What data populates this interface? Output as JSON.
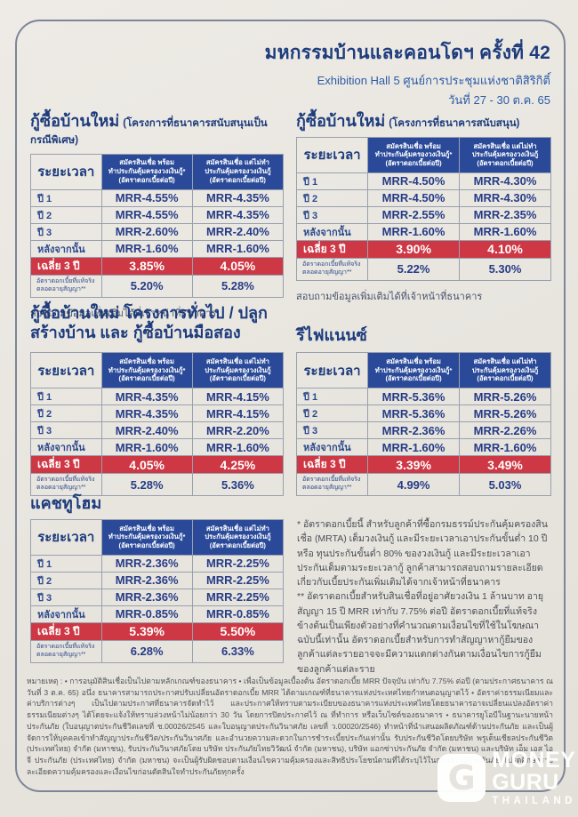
{
  "header": {
    "title": "มหกรรมบ้านและคอนโดฯ ครั้งที่ 42",
    "subtitle": "Exhibition Hall 5 ศูนย์การประชุมแห่งชาติสิริกิติ์",
    "date": "วันที่ 27 - 30 ต.ค. 65"
  },
  "colors": {
    "navy": "#1d3c7c",
    "header_blue": "#2a4a99",
    "red": "#ce3744",
    "paper": "#e8e5e0",
    "white": "#ffffff"
  },
  "table_common": {
    "period_header": "ระยะเวลา",
    "col_with": "สมัครสินเชื่อ พร้อม\nทำประกันคุ้มครองวงเงินกู้*\n(อัตราดอกเบี้ยต่อปี)",
    "col_without": "สมัครสินเชื่อ แต่ไม่ทำ\nประกันคุ้มครองวงเงินกู้\n(อัตราดอกเบี้ยต่อปี)",
    "row_labels": [
      "ปี 1",
      "ปี 2",
      "ปี 3",
      "หลังจากนั้น"
    ],
    "avg_label": "เฉลี่ย 3 ปี",
    "effective_label": "อัตราดอกเบี้ยที่แท้จริง\nตลอดอายุสัญญา**"
  },
  "tables": [
    {
      "title": "กู้ซื้อบ้านใหม่",
      "subtitle": "(โครงการที่ธนาคารสนับสนุนเป็นกรณีพิเศษ)",
      "rates_with": [
        "MRR-4.55%",
        "MRR-4.55%",
        "MRR-2.60%",
        "MRR-1.60%"
      ],
      "rates_without": [
        "MRR-4.35%",
        "MRR-4.35%",
        "MRR-2.40%",
        "MRR-1.60%"
      ],
      "avg_with": "3.85%",
      "avg_without": "4.05%",
      "effective_with": "5.20%",
      "effective_without": "5.28%",
      "contact_note": "สอบถามข้อมูลเพิ่มเติมได้ที่เจ้าหน้าที่ธนาคาร"
    },
    {
      "title": "กู้ซื้อบ้านใหม่",
      "subtitle": "(โครงการที่ธนาคารสนับสนุน)",
      "rates_with": [
        "MRR-4.50%",
        "MRR-4.50%",
        "MRR-2.55%",
        "MRR-1.60%"
      ],
      "rates_without": [
        "MRR-4.30%",
        "MRR-4.30%",
        "MRR-2.35%",
        "MRR-1.60%"
      ],
      "avg_with": "3.90%",
      "avg_without": "4.10%",
      "effective_with": "5.22%",
      "effective_without": "5.30%",
      "contact_note": "สอบถามข้อมูลเพิ่มเติมได้ที่เจ้าหน้าที่ธนาคาร"
    },
    {
      "title": "กู้ซื้อบ้านใหม่ โครงการทั่วไป / ปลูกสร้างบ้าน และ กู้ซื้อบ้านมือสอง",
      "subtitle": "",
      "rates_with": [
        "MRR-4.35%",
        "MRR-4.35%",
        "MRR-2.40%",
        "MRR-1.60%"
      ],
      "rates_without": [
        "MRR-4.15%",
        "MRR-4.15%",
        "MRR-2.20%",
        "MRR-1.60%"
      ],
      "avg_with": "4.05%",
      "avg_without": "4.25%",
      "effective_with": "5.28%",
      "effective_without": "5.36%"
    },
    {
      "title": "รีไฟแนนซ์",
      "subtitle": "",
      "rates_with": [
        "MRR-5.36%",
        "MRR-5.36%",
        "MRR-2.36%",
        "MRR-1.60%"
      ],
      "rates_without": [
        "MRR-5.26%",
        "MRR-5.26%",
        "MRR-2.26%",
        "MRR-1.60%"
      ],
      "avg_with": "3.39%",
      "avg_without": "3.49%",
      "effective_with": "4.99%",
      "effective_without": "5.03%"
    },
    {
      "title": "แคชทูโฮม",
      "subtitle": "",
      "rates_with": [
        "MRR-2.36%",
        "MRR-2.36%",
        "MRR-2.36%",
        "MRR-0.85%"
      ],
      "rates_without": [
        "MRR-2.25%",
        "MRR-2.25%",
        "MRR-2.25%",
        "MRR-0.85%"
      ],
      "avg_with": "5.39%",
      "avg_without": "5.50%",
      "effective_with": "6.28%",
      "effective_without": "6.33%"
    }
  ],
  "notes": {
    "note1": "* อัตราดอกเบี้ยนี้ สำหรับลูกค้าที่ซื้อกรมธรรม์ประกันคุ้มครองสินเชื่อ (MRTA) เต็มวงเงินกู้ และมีระยะเวลาเอาประกันขั้นต่ำ 10 ปี หรือ ทุนประกันขั้นต่ำ 80% ของวงเงินกู้ และมีระยะเวลาเอาประกันเต็มตามระยะเวลากู้ ลูกค้าสามารถสอบถามรายละเอียดเกี่ยวกับเบี้ยประกันเพิ่มเติมได้จากเจ้าหน้าที่ธนาคาร",
    "note2": "** อัตราดอกเบี้ยสำหรับสินเชื่อที่อยู่อาศัยวงเงิน 1 ล้านบาท อายุสัญญา 15 ปี MRR เท่ากับ 7.75% ต่อปี อัตราดอกเบี้ยที่แท้จริงข้างต้นเป็นเพียงตัวอย่างที่คำนวณตามเงื่อนไขที่ใช้ในโฆษณาฉบับนี้เท่านั้น อัตราดอกเบี้ยสำหรับการทำสัญญาหากู้ยืมของลูกค้าแต่ละรายอาจจะมีความแตกต่างกันตามเงื่อนไขการกู้ยืมของลูกค้าแต่ละราย"
  },
  "footer": {
    "text": "หมายเหตุ : • การอนุมัติสินเชื่อเป็นไปตามหลักเกณฑ์ของธนาคาร • เพื่อเป็นข้อมูลเบื้องต้น อัตราดอกเบี้ย MRR ปัจจุบัน เท่ากับ 7.75% ต่อปี (ตามประกาศธนาคาร ณ วันที่ 3 ต.ค. 65) อนึ่ง ธนาคารสามารถประกาศปรับเปลี่ยนอัตราดอกเบี้ย MRR ได้ตามเกณฑ์ที่ธนาคารแห่งประเทศไทยกำหนดอนุญาตไว้ • อัตราค่าธรรมเนียมและค่าบริการต่างๆ เป็นไปตามประกาศที่ธนาคารจัดทำไว้ และประกาศให้ทราบตามระเบียบของธนาคารแห่งประเทศไทยโดยธนาคารอาจเปลี่ยนแปลงอัตราค่าธรรมเนียมต่างๆ ได้โดยจะแจ้งให้ทราบล่วงหน้าไม่น้อยกว่า 30 วัน โดยการปิดประกาศไว้ ณ ที่ทำการ หรือเว็บไซต์ของธนาคาร • ธนาคารยูโอบีในฐานะนายหน้าประกันภัย (ใบอนุญาตประกันชีวิตเลขที่ ช.00026/2545 และใบอนุญาตประกันวินาศภัย เลขที่ ว.00020/2546) ทำหน้าที่นำเสนอผลิตภัณฑ์ด้านประกันภัย และเป็นผู้จัดการให้บุคคลเข้าทำสัญญาประกันชีวิต/ประกันวินาศภัย และอำนวยความสะดวกในการชำระเบี้ยประกันเท่านั้น รับประกันชีวิตโดยบริษัท พรูเด็นเชียลประกันชีวิต (ประเทศไทย) จำกัด (มหาชน), รับประกันวินาศภัยโดย บริษัท ประกันภัยไทยวิวัฒน์ จำกัด (มหาชน), บริษัท แอกซ่าประกันภัย จำกัด (มหาชน) และบริษัท เอ็ม เอส ไอ จี ประกันภัย (ประเทศไทย) จำกัด (มหาชน) จะเป็นผู้รับผิดชอบตามเงื่อนไขความคุ้มครองและสิทธิประโยชน์ตามที่ได้ระบุไว้ในกรมธรรม์ประกันภัย โปรดศึกษารายละเอียดความคุ้มครองและเงื่อนไขก่อนตัดสินใจทำประกันภัยทุกครั้ง"
  },
  "logo": {
    "icon_letter": "G",
    "line1": "MONEY",
    "line2": "GURU",
    "line3": "THAILAND"
  }
}
